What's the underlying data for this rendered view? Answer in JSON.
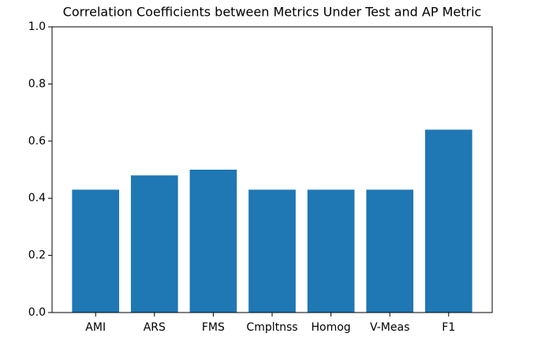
{
  "chart_data": {
    "type": "bar",
    "title": "Correlation Coefficients between Metrics Under Test and AP Metric",
    "categories": [
      "AMI",
      "ARS",
      "FMS",
      "Cmpltnss",
      "Homog",
      "V-Meas",
      "F1"
    ],
    "values": [
      0.43,
      0.48,
      0.5,
      0.43,
      0.43,
      0.43,
      0.64
    ],
    "color": "#1f77b4",
    "ylim": [
      0,
      1
    ],
    "yticks": [
      {
        "value": 0,
        "label": "0.0"
      },
      0.2,
      0.4,
      0.6,
      0.8,
      {
        "value": 1,
        "label": "1.0"
      }
    ],
    "grid": false
  }
}
